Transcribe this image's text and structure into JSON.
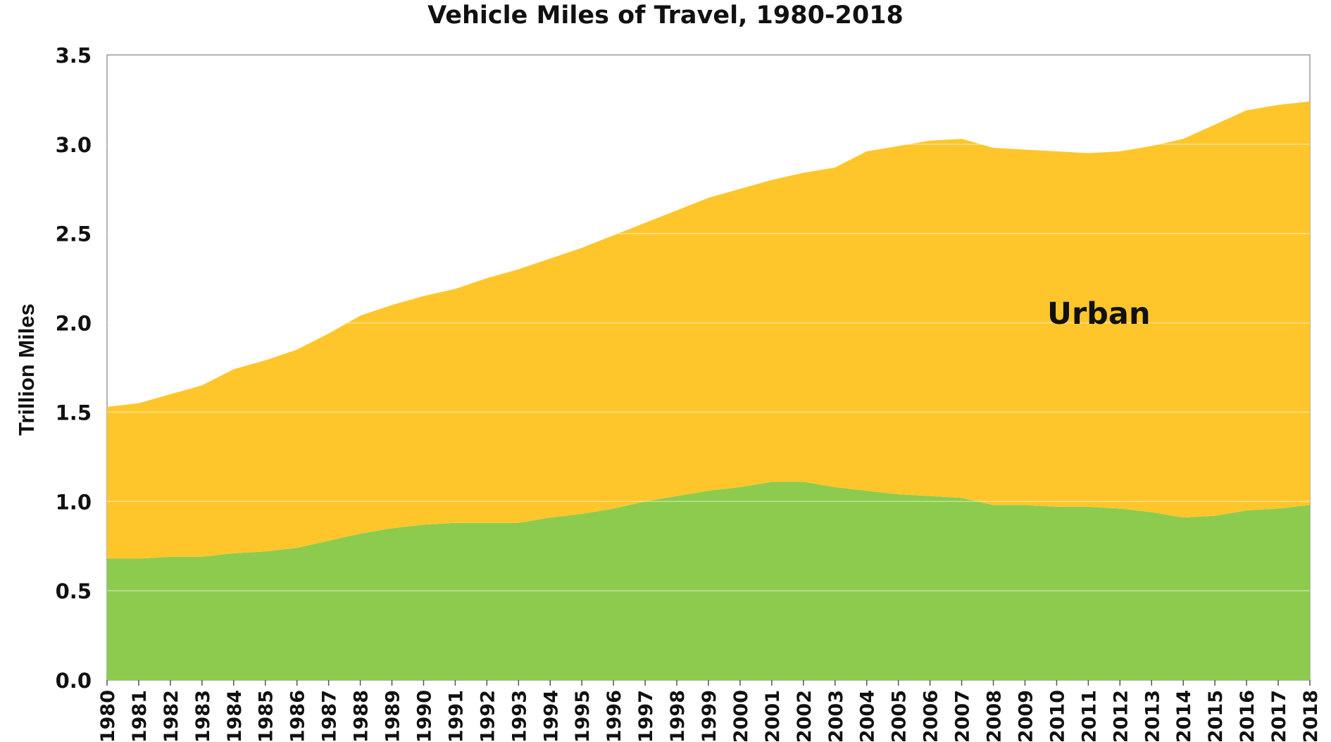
{
  "chart_data": {
    "type": "area",
    "title": "Vehicle Miles of Travel, 1980-2018",
    "xlabel": "",
    "ylabel": "Trillion Miles",
    "ylim": [
      0,
      3.5
    ],
    "yticks": [
      "0.0",
      "0.5",
      "1.0",
      "1.5",
      "2.0",
      "2.5",
      "3.0",
      "3.5"
    ],
    "categories": [
      "1980",
      "1981",
      "1982",
      "1983",
      "1984",
      "1985",
      "1986",
      "1987",
      "1988",
      "1989",
      "1990",
      "1991",
      "1992",
      "1993",
      "1994",
      "1995",
      "1996",
      "1997",
      "1998",
      "1999",
      "2000",
      "2001",
      "2002",
      "2003",
      "2004",
      "2005",
      "2006",
      "2007",
      "2008",
      "2009",
      "2010",
      "2011",
      "2012",
      "2013",
      "2014",
      "2015",
      "2016",
      "2017",
      "2018"
    ],
    "stacked": true,
    "series": [
      {
        "name": "",
        "color": "#8DCB4E",
        "values": [
          0.68,
          0.68,
          0.69,
          0.69,
          0.71,
          0.72,
          0.74,
          0.78,
          0.82,
          0.85,
          0.87,
          0.88,
          0.88,
          0.88,
          0.91,
          0.93,
          0.96,
          1.0,
          1.03,
          1.06,
          1.08,
          1.11,
          1.11,
          1.08,
          1.06,
          1.04,
          1.03,
          1.02,
          0.98,
          0.98,
          0.97,
          0.97,
          0.96,
          0.94,
          0.91,
          0.92,
          0.95,
          0.96,
          0.98
        ]
      },
      {
        "name": "Urban",
        "color": "#FFC62C",
        "values": [
          0.85,
          0.87,
          0.91,
          0.96,
          1.03,
          1.07,
          1.11,
          1.16,
          1.22,
          1.25,
          1.28,
          1.31,
          1.37,
          1.42,
          1.45,
          1.49,
          1.53,
          1.56,
          1.6,
          1.64,
          1.67,
          1.69,
          1.73,
          1.79,
          1.9,
          1.95,
          1.99,
          2.01,
          2.0,
          1.99,
          1.99,
          1.98,
          2.0,
          2.05,
          2.12,
          2.19,
          2.24,
          2.26,
          2.26
        ]
      }
    ],
    "annotations": [
      {
        "text": "Urban",
        "series": "Urban"
      }
    ],
    "grid": true,
    "legend": "none"
  }
}
